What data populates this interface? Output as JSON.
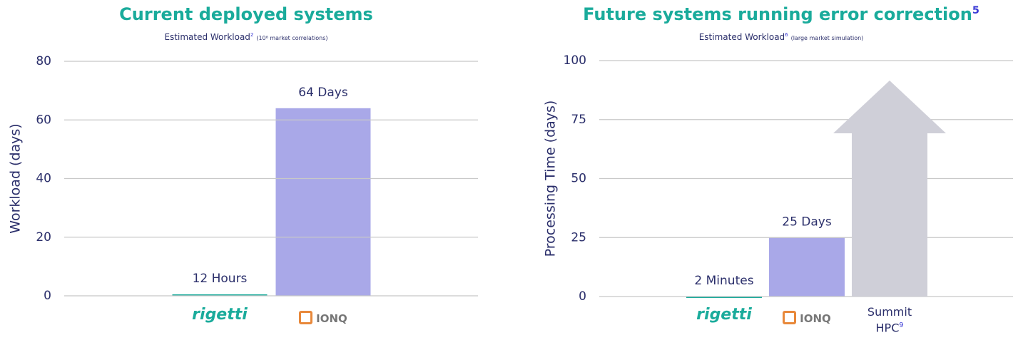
{
  "chart_data": [
    {
      "type": "bar",
      "title": "Current deployed systems",
      "subtitle": "Estimated Workload",
      "subtitle_superscript": "2",
      "subtitle_note": "(10⁸ market  correlations)",
      "ylabel": "Workload (days)",
      "categories": [
        "rigetti",
        "IONQ"
      ],
      "category_superscripts": [
        null,
        null
      ],
      "values": [
        0.5,
        64
      ],
      "value_labels": [
        "12 Hours",
        "64 Days"
      ],
      "colors": [
        "#1aab9b",
        "#a9a8e8"
      ],
      "ylim": [
        0,
        80
      ],
      "yticks": [
        0,
        20,
        40,
        60,
        80
      ],
      "grid": true
    },
    {
      "type": "bar",
      "title": "Future systems running error correction",
      "title_superscript": "5",
      "subtitle": "Estimated Workload",
      "subtitle_superscript": "6",
      "subtitle_note": "(large market simulation)",
      "ylabel": "Processing Time (days)",
      "categories": [
        "rigetti",
        "IONQ",
        "Summit HPC"
      ],
      "category_superscripts": [
        null,
        null,
        "9"
      ],
      "values": [
        0.0014,
        25,
        null
      ],
      "value_labels": [
        "2 Minutes",
        "25 Days",
        null
      ],
      "colors": [
        "#1aab9b",
        "#a9a8e8",
        "#cfcfd8"
      ],
      "ylim": [
        0,
        100
      ],
      "yticks": [
        0,
        25,
        50,
        75,
        100
      ],
      "grid": true
    }
  ]
}
